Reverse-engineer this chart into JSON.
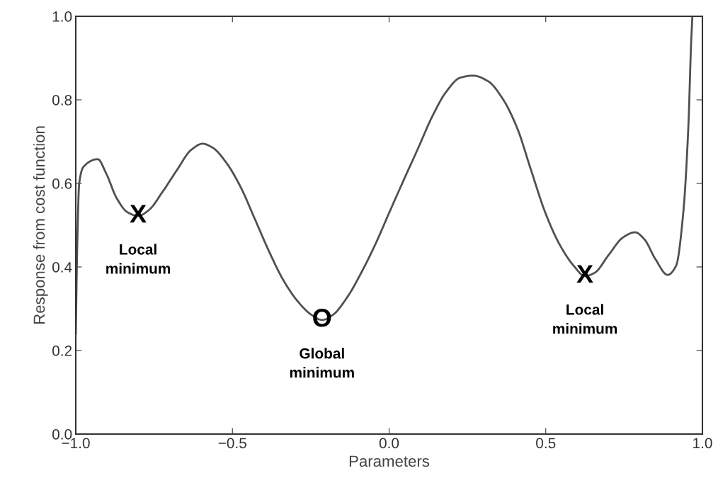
{
  "chart_data": {
    "type": "line",
    "xlabel": "Parameters",
    "ylabel": "Response from cost function",
    "x": [
      -1.0,
      -0.995,
      -0.989,
      -0.975,
      -0.93,
      -0.903,
      -0.869,
      -0.835,
      -0.801,
      -0.767,
      -0.722,
      -0.677,
      -0.632,
      -0.595,
      -0.564,
      -0.519,
      -0.473,
      -0.428,
      -0.383,
      -0.338,
      -0.293,
      -0.247,
      -0.214,
      -0.18,
      -0.134,
      -0.089,
      -0.044,
      0.001,
      0.046,
      0.092,
      0.137,
      0.182,
      0.227,
      0.268,
      0.317,
      0.363,
      0.408,
      0.453,
      0.498,
      0.544,
      0.589,
      0.625,
      0.656,
      0.701,
      0.747,
      0.785,
      0.815,
      0.849,
      0.889,
      0.916,
      0.939,
      0.955,
      0.964,
      0.968
    ],
    "series": [
      {
        "color": "#505050",
        "values": [
          0.24,
          0.46,
          0.6,
          0.64,
          0.658,
          0.624,
          0.564,
          0.531,
          0.522,
          0.536,
          0.581,
          0.632,
          0.68,
          0.695,
          0.686,
          0.649,
          0.59,
          0.514,
          0.437,
          0.369,
          0.319,
          0.285,
          0.273,
          0.285,
          0.327,
          0.386,
          0.454,
          0.531,
          0.607,
          0.683,
          0.759,
          0.819,
          0.853,
          0.858,
          0.844,
          0.802,
          0.734,
          0.632,
          0.531,
          0.454,
          0.403,
          0.378,
          0.386,
          0.429,
          0.471,
          0.483,
          0.466,
          0.42,
          0.381,
          0.403,
          0.531,
          0.734,
          0.937,
          1.0
        ]
      }
    ],
    "xlim": [
      -1.0,
      1.0
    ],
    "ylim": [
      0.0,
      1.0
    ],
    "xticks": [
      {
        "value": -1.0,
        "label": "−1.0"
      },
      {
        "value": -0.5,
        "label": "−0.5"
      },
      {
        "value": 0.0,
        "label": "0.0"
      },
      {
        "value": 0.5,
        "label": "0.5"
      },
      {
        "value": 1.0,
        "label": "1.0"
      }
    ],
    "yticks": [
      {
        "value": 0.0,
        "label": "0.0"
      },
      {
        "value": 0.2,
        "label": "0.2"
      },
      {
        "value": 0.4,
        "label": "0.4"
      },
      {
        "value": 0.6,
        "label": "0.6"
      },
      {
        "value": 0.8,
        "label": "0.8"
      },
      {
        "value": 1.0,
        "label": "1.0"
      }
    ],
    "grid": false,
    "marker": "none",
    "line_style": "solid",
    "annotations": [
      {
        "text": "X",
        "x": -0.801,
        "y": 0.522
      },
      {
        "text": "Local\nminimum",
        "x": -0.801,
        "y": 0.522
      },
      {
        "text": "O",
        "x": -0.214,
        "y": 0.273
      },
      {
        "text": "Global\nminimum",
        "x": -0.214,
        "y": 0.273
      },
      {
        "text": "X",
        "x": 0.625,
        "y": 0.378
      },
      {
        "text": "Local\nminimum",
        "x": 0.625,
        "y": 0.378
      }
    ]
  }
}
